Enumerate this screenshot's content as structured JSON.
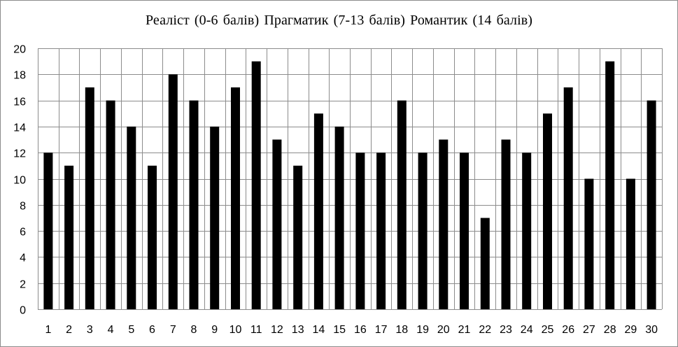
{
  "chart_data": {
    "type": "bar",
    "title": "Реаліст (0-6 балів)  Прагматик (7-13 балів)  Романтик (14 балів)",
    "xlabel": "",
    "ylabel": "",
    "categories": [
      "1",
      "2",
      "3",
      "4",
      "5",
      "6",
      "7",
      "8",
      "9",
      "10",
      "11",
      "12",
      "13",
      "14",
      "15",
      "16",
      "17",
      "18",
      "19",
      "20",
      "21",
      "22",
      "23",
      "24",
      "25",
      "26",
      "27",
      "28",
      "29",
      "30"
    ],
    "values": [
      12,
      11,
      17,
      16,
      14,
      11,
      18,
      16,
      14,
      17,
      19,
      13,
      11,
      15,
      14,
      12,
      12,
      16,
      12,
      13,
      12,
      7,
      13,
      12,
      15,
      17,
      10,
      19,
      10,
      16
    ],
    "ylim": [
      0,
      20
    ],
    "yticks": [
      0,
      2,
      4,
      6,
      8,
      10,
      12,
      14,
      16,
      18,
      20
    ],
    "grid": true,
    "legend": "none",
    "colors": {
      "bar": "#000000",
      "grid": "#8c8c8c",
      "frame": "#8c8c8c",
      "background": "#ffffff"
    }
  }
}
